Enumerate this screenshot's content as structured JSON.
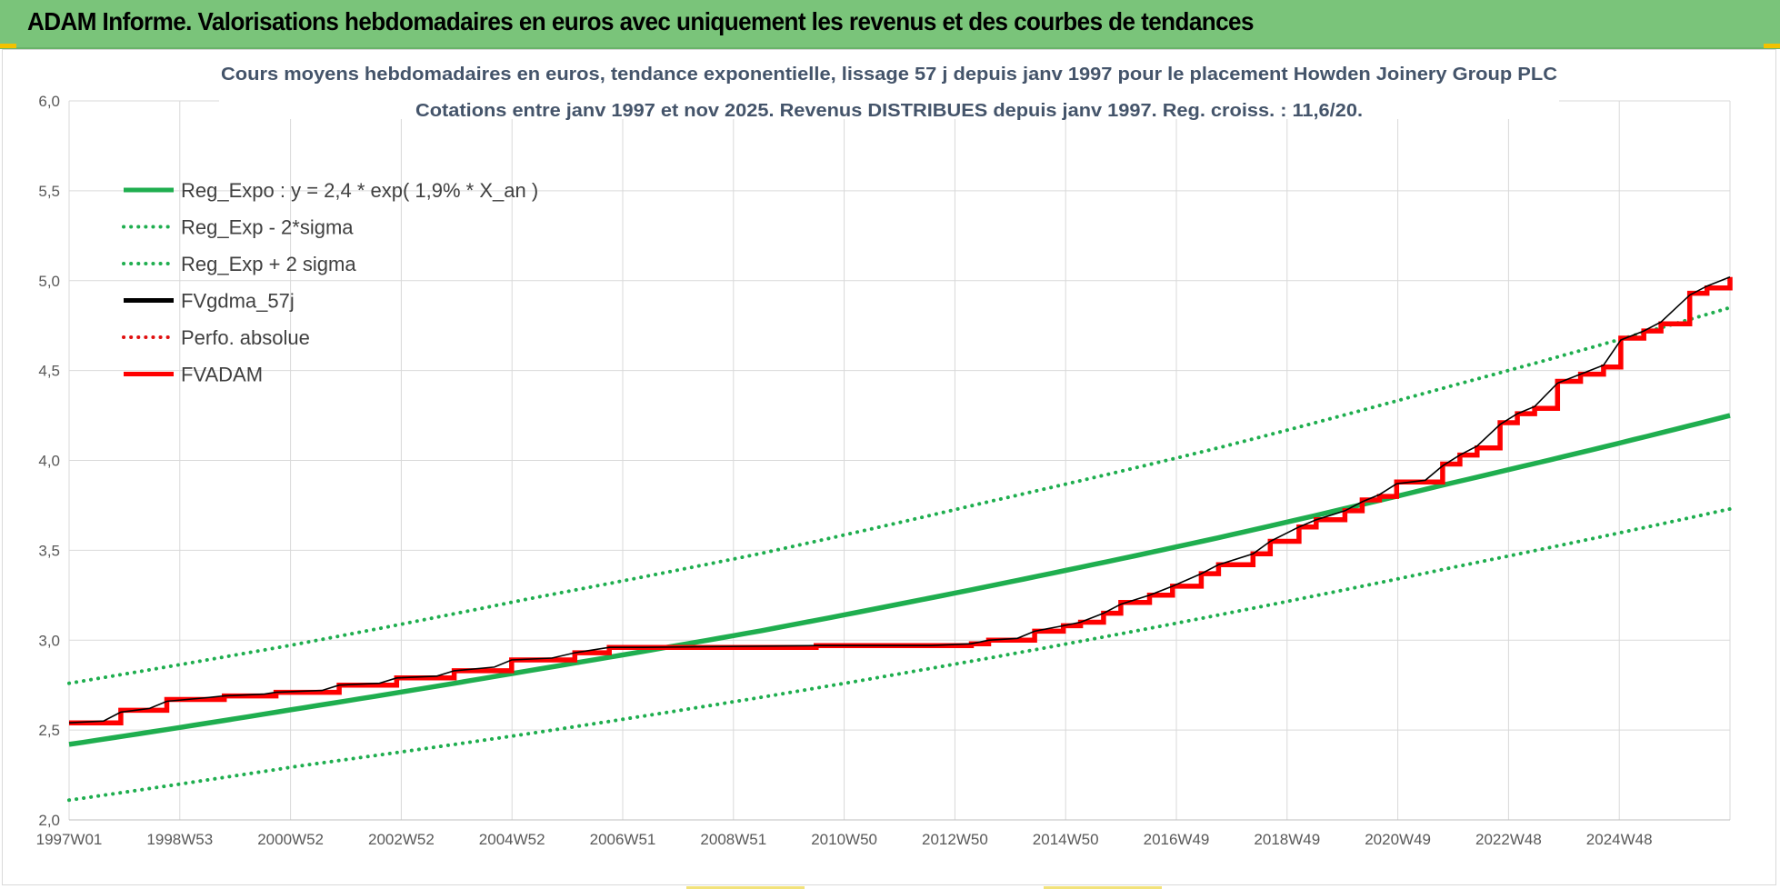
{
  "banner": {
    "title": "ADAM Informe. Valorisations hebdomadaires en euros avec uniquement les revenus et des courbes de tendances"
  },
  "colors": {
    "banner_bg": "#7ac47a",
    "trend_green": "#1fae4f",
    "fvgdma_black": "#000000",
    "fvadam_red": "#ff0000",
    "perfo_red": "#e01010",
    "grid": "#d9d9d9"
  },
  "chart_data": {
    "type": "line",
    "title_line1": "Cours moyens hebdomadaires en euros, tendance exponentielle, lissage 57 j depuis janv 1997 pour le placement Howden Joinery Group PLC",
    "title_line2": "Cotations entre janv 1997 et nov 2025. Revenus DISTRIBUES depuis janv 1997. Reg. croiss. : 11,6/20.",
    "ylim": [
      2.0,
      6.0
    ],
    "y_ticks": [
      "2,0",
      "2,5",
      "3,0",
      "3,5",
      "4,0",
      "4,5",
      "5,0",
      "5,5",
      "6,0"
    ],
    "x_ticks": [
      "1997W01",
      "1998W53",
      "2000W52",
      "2002W52",
      "2004W52",
      "2006W51",
      "2008W51",
      "2010W50",
      "2012W50",
      "2014W50",
      "2016W49",
      "2018W49",
      "2020W49",
      "2022W48",
      "2024W48"
    ],
    "x_range_years": [
      1997.0,
      2025.9
    ],
    "grid": true,
    "legend_position": "top-left",
    "legend": [
      {
        "label": "Reg_Expo : y = 2,4 * exp( 1,9% *  X_an )",
        "style": "solid",
        "color": "#1fae4f"
      },
      {
        "label": "Reg_Exp - 2*sigma",
        "style": "dotted",
        "color": "#1fae4f"
      },
      {
        "label": "Reg_Exp + 2 sigma",
        "style": "dotted",
        "color": "#1fae4f"
      },
      {
        "label": "FVgdma_57j",
        "style": "solid",
        "color": "#000000"
      },
      {
        "label": "Perfo. absolue",
        "style": "dotted",
        "color": "#e01010"
      },
      {
        "label": "FVADAM",
        "style": "solid",
        "color": "#ff0000"
      }
    ],
    "series": [
      {
        "name": "Reg_Expo : y = 2,4 * exp( 1,9% *  X_an )",
        "x": [
          1997.0,
          2001.0,
          2005.0,
          2009.0,
          2013.0,
          2017.0,
          2021.0,
          2025.9
        ],
        "values": [
          2.42,
          2.62,
          2.83,
          3.05,
          3.3,
          3.57,
          3.87,
          4.25
        ]
      },
      {
        "name": "Reg_Exp - 2*sigma",
        "x": [
          1997.0,
          2001.0,
          2005.0,
          2009.0,
          2013.0,
          2017.0,
          2021.0,
          2025.9
        ],
        "values": [
          2.11,
          2.3,
          2.48,
          2.68,
          2.9,
          3.14,
          3.4,
          3.73
        ]
      },
      {
        "name": "Reg_Exp + 2 sigma",
        "x": [
          1997.0,
          2001.0,
          2005.0,
          2009.0,
          2013.0,
          2017.0,
          2021.0,
          2025.9
        ],
        "values": [
          2.76,
          2.98,
          3.23,
          3.48,
          3.77,
          4.07,
          4.41,
          4.85
        ]
      },
      {
        "name": "FVADAM",
        "x": [
          1997.0,
          1997.6,
          1997.9,
          1998.4,
          1998.7,
          1999.4,
          1999.7,
          2000.4,
          2000.6,
          2001.4,
          2001.7,
          2002.4,
          2002.7,
          2003.4,
          2003.7,
          2004.4,
          2004.7,
          2005.4,
          2005.8,
          2006.4,
          2007.0,
          2010.0,
          2012.0,
          2012.7,
          2013.0,
          2013.5,
          2013.8,
          2014.3,
          2014.6,
          2015.0,
          2015.3,
          2015.8,
          2016.2,
          2016.7,
          2017.0,
          2017.6,
          2017.9,
          2018.4,
          2018.7,
          2019.2,
          2019.5,
          2019.8,
          2020.1,
          2020.6,
          2020.9,
          2021.2,
          2021.5,
          2021.9,
          2022.2,
          2022.5,
          2022.9,
          2023.3,
          2023.7,
          2024.0,
          2024.4,
          2024.7,
          2025.2,
          2025.5,
          2025.9
        ],
        "values": [
          2.54,
          2.54,
          2.61,
          2.61,
          2.67,
          2.67,
          2.69,
          2.69,
          2.71,
          2.71,
          2.75,
          2.75,
          2.79,
          2.79,
          2.83,
          2.83,
          2.89,
          2.89,
          2.93,
          2.96,
          2.96,
          2.97,
          2.97,
          2.98,
          3.0,
          3.0,
          3.05,
          3.08,
          3.1,
          3.15,
          3.21,
          3.25,
          3.3,
          3.37,
          3.42,
          3.48,
          3.55,
          3.63,
          3.67,
          3.72,
          3.78,
          3.8,
          3.88,
          3.88,
          3.98,
          4.03,
          4.07,
          4.21,
          4.26,
          4.29,
          4.44,
          4.48,
          4.52,
          4.68,
          4.72,
          4.76,
          4.93,
          4.96,
          5.02
        ]
      },
      {
        "name": "FVgdma_57j",
        "x": [
          1997.0,
          1997.6,
          1997.9,
          1998.4,
          1998.7,
          1999.4,
          1999.7,
          2000.4,
          2000.6,
          2001.4,
          2001.7,
          2002.4,
          2002.7,
          2003.4,
          2003.7,
          2004.4,
          2004.7,
          2005.4,
          2005.8,
          2006.4,
          2007.0,
          2010.0,
          2012.0,
          2012.7,
          2013.0,
          2013.5,
          2013.8,
          2014.3,
          2014.6,
          2015.0,
          2015.3,
          2015.8,
          2016.2,
          2016.7,
          2017.0,
          2017.6,
          2017.9,
          2018.4,
          2018.7,
          2019.2,
          2019.5,
          2019.8,
          2020.1,
          2020.6,
          2020.9,
          2021.2,
          2021.5,
          2021.9,
          2022.2,
          2022.5,
          2022.9,
          2023.3,
          2023.7,
          2024.0,
          2024.4,
          2024.7,
          2025.2,
          2025.5,
          2025.9
        ],
        "values": [
          2.54,
          2.55,
          2.6,
          2.62,
          2.66,
          2.68,
          2.69,
          2.7,
          2.71,
          2.72,
          2.75,
          2.76,
          2.79,
          2.8,
          2.83,
          2.85,
          2.89,
          2.9,
          2.93,
          2.96,
          2.96,
          2.97,
          2.97,
          2.98,
          3.0,
          3.01,
          3.05,
          3.08,
          3.1,
          3.15,
          3.2,
          3.25,
          3.3,
          3.37,
          3.42,
          3.48,
          3.55,
          3.63,
          3.67,
          3.72,
          3.77,
          3.81,
          3.87,
          3.89,
          3.97,
          4.03,
          4.08,
          4.2,
          4.26,
          4.3,
          4.43,
          4.48,
          4.53,
          4.67,
          4.72,
          4.77,
          4.92,
          4.97,
          5.02
        ]
      }
    ]
  }
}
